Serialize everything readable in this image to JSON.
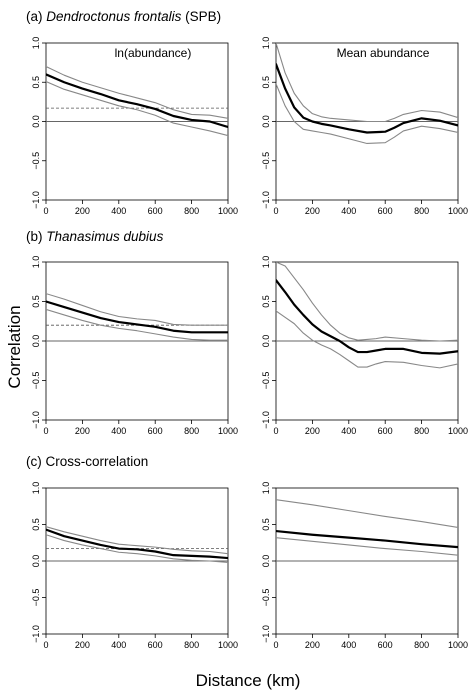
{
  "figure": {
    "ylabel": "Correlation",
    "xlabel": "Distance (km)",
    "rows": [
      {
        "prefix": "(a) ",
        "species": "Dendroctonus frontalis",
        "suffix": " (SPB)"
      },
      {
        "prefix": "(b) ",
        "species": "Thanasimus dubius",
        "suffix": ""
      },
      {
        "prefix": "(c) Cross-correlation",
        "species": "",
        "suffix": ""
      }
    ],
    "column_labels": [
      "ln(abundance)",
      "Mean abundance"
    ],
    "colors": {
      "main": "#000000",
      "ci": "#888888",
      "ref": "#555555"
    }
  },
  "chart_data": [
    {
      "type": "line",
      "panel": "a-left",
      "label": "ln(abundance)",
      "xlim": [
        0,
        1000
      ],
      "ylim": [
        -1,
        1
      ],
      "xticks": [
        0,
        200,
        400,
        600,
        800,
        1000
      ],
      "yticks": [
        -1.0,
        -0.5,
        0.0,
        0.5,
        1.0
      ],
      "ytick_labels": [
        "−1.0",
        "−0.5",
        "0.0",
        "0.5",
        "1.0"
      ],
      "hline_dashed": 0.17,
      "x": [
        0,
        100,
        200,
        300,
        400,
        500,
        600,
        700,
        800,
        900,
        1000
      ],
      "series": [
        {
          "role": "estimate",
          "values": [
            0.6,
            0.5,
            0.42,
            0.35,
            0.27,
            0.22,
            0.16,
            0.07,
            0.02,
            0.0,
            -0.07
          ]
        },
        {
          "role": "upper",
          "values": [
            0.7,
            0.59,
            0.5,
            0.43,
            0.36,
            0.3,
            0.24,
            0.15,
            0.09,
            0.08,
            0.04
          ]
        },
        {
          "role": "lower",
          "values": [
            0.51,
            0.41,
            0.34,
            0.27,
            0.2,
            0.15,
            0.08,
            -0.02,
            -0.07,
            -0.12,
            -0.18
          ]
        }
      ]
    },
    {
      "type": "line",
      "panel": "a-right",
      "label": "Mean abundance",
      "xlim": [
        0,
        1000
      ],
      "ylim": [
        -1,
        1
      ],
      "xticks": [
        0,
        200,
        400,
        600,
        800,
        1000
      ],
      "yticks": [
        -1.0,
        -0.5,
        0.0,
        0.5,
        1.0
      ],
      "ytick_labels": [
        "−1.0",
        "−0.5",
        "0.0",
        "0.5",
        "1.0"
      ],
      "x": [
        0,
        50,
        100,
        150,
        200,
        250,
        300,
        400,
        500,
        600,
        650,
        700,
        800,
        900,
        1000
      ],
      "series": [
        {
          "role": "estimate",
          "values": [
            0.73,
            0.42,
            0.18,
            0.05,
            0.0,
            -0.03,
            -0.05,
            -0.1,
            -0.14,
            -0.13,
            -0.08,
            -0.02,
            0.04,
            0.01,
            -0.05
          ]
        },
        {
          "role": "upper",
          "values": [
            1.0,
            0.62,
            0.36,
            0.2,
            0.1,
            0.06,
            0.04,
            0.02,
            0.0,
            0.0,
            0.04,
            0.09,
            0.14,
            0.12,
            0.05
          ]
        },
        {
          "role": "lower",
          "values": [
            0.48,
            0.2,
            0.0,
            -0.1,
            -0.12,
            -0.14,
            -0.16,
            -0.22,
            -0.28,
            -0.27,
            -0.2,
            -0.12,
            -0.06,
            -0.09,
            -0.14
          ]
        }
      ]
    },
    {
      "type": "line",
      "panel": "b-left",
      "label": "",
      "xlim": [
        0,
        1000
      ],
      "ylim": [
        -1,
        1
      ],
      "xticks": [
        0,
        200,
        400,
        600,
        800,
        1000
      ],
      "yticks": [
        -1.0,
        -0.5,
        0.0,
        0.5,
        1.0
      ],
      "ytick_labels": [
        "−1.0",
        "−0.5",
        "0.0",
        "0.5",
        "1.0"
      ],
      "hline_dashed": 0.2,
      "x": [
        0,
        100,
        200,
        300,
        400,
        500,
        600,
        700,
        800,
        900,
        1000
      ],
      "series": [
        {
          "role": "estimate",
          "values": [
            0.5,
            0.43,
            0.36,
            0.29,
            0.24,
            0.21,
            0.18,
            0.13,
            0.11,
            0.11,
            0.11
          ]
        },
        {
          "role": "upper",
          "values": [
            0.6,
            0.53,
            0.45,
            0.37,
            0.31,
            0.28,
            0.26,
            0.21,
            0.2,
            0.2,
            0.2
          ]
        },
        {
          "role": "lower",
          "values": [
            0.4,
            0.33,
            0.26,
            0.2,
            0.16,
            0.13,
            0.09,
            0.05,
            0.02,
            0.01,
            0.01
          ]
        }
      ]
    },
    {
      "type": "line",
      "panel": "b-right",
      "label": "",
      "xlim": [
        0,
        1000
      ],
      "ylim": [
        -1,
        1
      ],
      "xticks": [
        0,
        200,
        400,
        600,
        800,
        1000
      ],
      "yticks": [
        -1.0,
        -0.5,
        0.0,
        0.5,
        1.0
      ],
      "ytick_labels": [
        "−1.0",
        "−0.5",
        "0.0",
        "0.5",
        "1.0"
      ],
      "x": [
        0,
        50,
        100,
        150,
        200,
        250,
        300,
        350,
        400,
        450,
        500,
        550,
        600,
        700,
        800,
        900,
        1000
      ],
      "series": [
        {
          "role": "estimate",
          "values": [
            0.77,
            0.62,
            0.46,
            0.33,
            0.21,
            0.12,
            0.06,
            0.0,
            -0.08,
            -0.14,
            -0.14,
            -0.12,
            -0.1,
            -0.1,
            -0.15,
            -0.16,
            -0.13
          ]
        },
        {
          "role": "upper",
          "values": [
            1.0,
            0.95,
            0.8,
            0.65,
            0.48,
            0.33,
            0.2,
            0.1,
            0.04,
            0.01,
            0.02,
            0.03,
            0.05,
            0.03,
            0.01,
            0.0,
            0.01
          ]
        },
        {
          "role": "lower",
          "values": [
            0.38,
            0.3,
            0.22,
            0.1,
            0.01,
            -0.05,
            -0.1,
            -0.17,
            -0.25,
            -0.33,
            -0.33,
            -0.29,
            -0.26,
            -0.27,
            -0.31,
            -0.34,
            -0.29
          ]
        }
      ]
    },
    {
      "type": "line",
      "panel": "c-left",
      "label": "",
      "xlim": [
        0,
        1000
      ],
      "ylim": [
        -1,
        1
      ],
      "xticks": [
        0,
        200,
        400,
        600,
        800,
        1000
      ],
      "yticks": [
        -1.0,
        -0.5,
        0.0,
        0.5,
        1.0
      ],
      "ytick_labels": [
        "−1.0",
        "−0.5",
        "0.0",
        "0.5",
        "1.0"
      ],
      "hline_dashed": 0.17,
      "x": [
        0,
        100,
        200,
        300,
        400,
        500,
        600,
        700,
        800,
        900,
        1000
      ],
      "series": [
        {
          "role": "estimate",
          "values": [
            0.43,
            0.34,
            0.28,
            0.22,
            0.17,
            0.16,
            0.13,
            0.08,
            0.07,
            0.06,
            0.04
          ]
        },
        {
          "role": "upper",
          "values": [
            0.47,
            0.4,
            0.34,
            0.28,
            0.23,
            0.21,
            0.19,
            0.16,
            0.14,
            0.13,
            0.1
          ]
        },
        {
          "role": "lower",
          "values": [
            0.36,
            0.28,
            0.22,
            0.17,
            0.12,
            0.1,
            0.07,
            0.03,
            0.01,
            0.0,
            -0.02
          ]
        }
      ]
    },
    {
      "type": "line",
      "panel": "c-right",
      "label": "",
      "xlim": [
        0,
        1000
      ],
      "ylim": [
        -1,
        1
      ],
      "xticks": [
        0,
        200,
        400,
        600,
        800,
        1000
      ],
      "yticks": [
        -1.0,
        -0.5,
        0.0,
        0.5,
        1.0
      ],
      "ytick_labels": [
        "−1.0",
        "−0.5",
        "0.0",
        "0.5",
        "1.0"
      ],
      "x": [
        0,
        200,
        400,
        600,
        800,
        1000
      ],
      "series": [
        {
          "role": "estimate",
          "values": [
            0.41,
            0.36,
            0.32,
            0.28,
            0.23,
            0.19
          ]
        },
        {
          "role": "upper",
          "values": [
            0.84,
            0.77,
            0.69,
            0.61,
            0.54,
            0.46
          ]
        },
        {
          "role": "lower",
          "values": [
            0.32,
            0.27,
            0.22,
            0.17,
            0.13,
            0.08
          ]
        }
      ]
    }
  ]
}
